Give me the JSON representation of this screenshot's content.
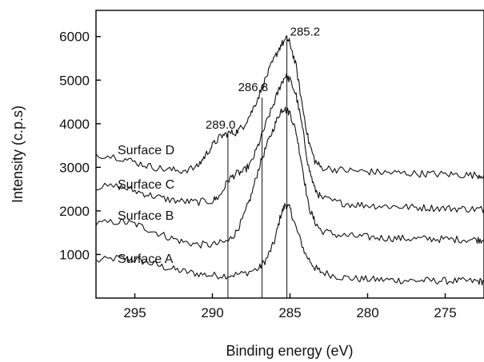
{
  "chart_data": {
    "type": "line",
    "xlabel": "Binding energy (eV)",
    "ylabel": "Intensity (c.p.s)",
    "xlim": [
      297.5,
      272.5
    ],
    "x_reversed": true,
    "ylim": [
      0,
      6600
    ],
    "xticks": [
      295,
      290,
      285,
      280,
      275
    ],
    "yticks": [
      1000,
      2000,
      3000,
      4000,
      5000,
      6000
    ],
    "grid": false,
    "series": [
      {
        "name": "Surface A",
        "points": [
          [
            297.5,
            850
          ],
          [
            296,
            920
          ],
          [
            295,
            880
          ],
          [
            294,
            800
          ],
          [
            293,
            700
          ],
          [
            292,
            620
          ],
          [
            291,
            560
          ],
          [
            290,
            520
          ],
          [
            289,
            520
          ],
          [
            288,
            560
          ],
          [
            287,
            680
          ],
          [
            286.5,
            900
          ],
          [
            286,
            1300
          ],
          [
            285.6,
            1900
          ],
          [
            285.3,
            2150
          ],
          [
            285,
            2050
          ],
          [
            284.6,
            1600
          ],
          [
            284,
            1000
          ],
          [
            283.4,
            700
          ],
          [
            283,
            600
          ],
          [
            282,
            500
          ],
          [
            281,
            450
          ],
          [
            280,
            430
          ],
          [
            279,
            420
          ],
          [
            278,
            410
          ],
          [
            277,
            400
          ],
          [
            276,
            400
          ],
          [
            275,
            395
          ],
          [
            274,
            390
          ],
          [
            273,
            385
          ],
          [
            272.5,
            380
          ]
        ]
      },
      {
        "name": "Surface B",
        "points": [
          [
            297.5,
            1700
          ],
          [
            296,
            1760
          ],
          [
            295,
            1700
          ],
          [
            294,
            1560
          ],
          [
            293,
            1420
          ],
          [
            292,
            1300
          ],
          [
            291,
            1230
          ],
          [
            290,
            1220
          ],
          [
            289,
            1300
          ],
          [
            288.5,
            1500
          ],
          [
            288,
            1850
          ],
          [
            287.5,
            2350
          ],
          [
            287,
            3000
          ],
          [
            286.5,
            3500
          ],
          [
            286,
            3950
          ],
          [
            285.6,
            4300
          ],
          [
            285.4,
            4350
          ],
          [
            285,
            4250
          ],
          [
            284.6,
            3800
          ],
          [
            284.2,
            3000
          ],
          [
            283.8,
            2100
          ],
          [
            283.4,
            1750
          ],
          [
            283,
            1550
          ],
          [
            282,
            1450
          ],
          [
            281,
            1420
          ],
          [
            280,
            1400
          ],
          [
            279,
            1380
          ],
          [
            278,
            1370
          ],
          [
            277,
            1360
          ],
          [
            276,
            1360
          ],
          [
            275,
            1350
          ],
          [
            274,
            1345
          ],
          [
            273,
            1340
          ],
          [
            272.5,
            1340
          ]
        ]
      },
      {
        "name": "Surface C",
        "points": [
          [
            297.5,
            2550
          ],
          [
            296,
            2560
          ],
          [
            295,
            2460
          ],
          [
            294,
            2360
          ],
          [
            293,
            2270
          ],
          [
            292,
            2220
          ],
          [
            291,
            2200
          ],
          [
            290,
            2230
          ],
          [
            289.5,
            2350
          ],
          [
            289,
            2700
          ],
          [
            288.5,
            2850
          ],
          [
            288,
            2900
          ],
          [
            287.5,
            3100
          ],
          [
            287,
            3550
          ],
          [
            286.5,
            4050
          ],
          [
            286,
            4500
          ],
          [
            285.6,
            4900
          ],
          [
            285.3,
            5100
          ],
          [
            285,
            5000
          ],
          [
            284.6,
            4650
          ],
          [
            284.2,
            3900
          ],
          [
            283.8,
            3000
          ],
          [
            283.4,
            2500
          ],
          [
            283,
            2300
          ],
          [
            282,
            2200
          ],
          [
            281,
            2150
          ],
          [
            280,
            2130
          ],
          [
            279,
            2110
          ],
          [
            278,
            2100
          ],
          [
            277,
            2080
          ],
          [
            276,
            2070
          ],
          [
            275,
            2060
          ],
          [
            274,
            2050
          ],
          [
            273,
            2040
          ],
          [
            272.5,
            2040
          ]
        ]
      },
      {
        "name": "Surface D",
        "points": [
          [
            297.5,
            3300
          ],
          [
            296,
            3230
          ],
          [
            295,
            3120
          ],
          [
            294,
            3020
          ],
          [
            293,
            2950
          ],
          [
            292,
            2920
          ],
          [
            291,
            3000
          ],
          [
            290.5,
            3250
          ],
          [
            290,
            3500
          ],
          [
            289.5,
            3700
          ],
          [
            289,
            3780
          ],
          [
            288.5,
            3800
          ],
          [
            288,
            3950
          ],
          [
            287.5,
            4250
          ],
          [
            287,
            4650
          ],
          [
            286.5,
            5100
          ],
          [
            286,
            5500
          ],
          [
            285.6,
            5800
          ],
          [
            285.2,
            5950
          ],
          [
            285,
            5850
          ],
          [
            284.6,
            5300
          ],
          [
            284.2,
            4400
          ],
          [
            283.8,
            3600
          ],
          [
            283.4,
            3150
          ],
          [
            283,
            3000
          ],
          [
            282,
            2950
          ],
          [
            281,
            2920
          ],
          [
            280,
            2900
          ],
          [
            279,
            2880
          ],
          [
            278,
            2870
          ],
          [
            277,
            2860
          ],
          [
            276,
            2850
          ],
          [
            275,
            2840
          ],
          [
            274,
            2830
          ],
          [
            273,
            2820
          ],
          [
            272.5,
            2820
          ]
        ]
      }
    ],
    "peak_markers": [
      {
        "label": "289.0",
        "x": 289.0,
        "y_top": 3780
      },
      {
        "label": "286.8",
        "x": 286.8,
        "y_top": 4600
      },
      {
        "label": "285.2",
        "x": 285.2,
        "y_top": 5950
      }
    ]
  }
}
